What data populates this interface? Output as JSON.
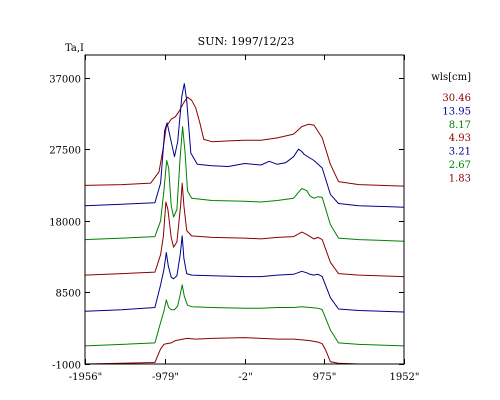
{
  "chart_data": {
    "type": "line",
    "title": "SUN: 1997/12/23",
    "ylabel": "Ta,I",
    "xlabel": "",
    "x_ticks": [
      {
        "value": -1956,
        "label": "-1956\""
      },
      {
        "value": -979,
        "label": "-979\""
      },
      {
        "value": -2,
        "label": "-2\""
      },
      {
        "value": 975,
        "label": "975\""
      },
      {
        "value": 1952,
        "label": "1952\""
      }
    ],
    "y_ticks": [
      37000,
      27500,
      18000,
      8500,
      -1000
    ],
    "xlim": [
      -1956,
      1952
    ],
    "ylim": [
      -1000,
      40000
    ],
    "grid": false,
    "legend_title": "wls[cm]",
    "legend_position": "right",
    "series": [
      {
        "name": "30.46",
        "color": "#8b0000",
        "points": [
          [
            -1956,
            22700
          ],
          [
            -1500,
            22800
          ],
          [
            -1150,
            23000
          ],
          [
            -1050,
            24500
          ],
          [
            -1000,
            27500
          ],
          [
            -960,
            30500
          ],
          [
            -900,
            31500
          ],
          [
            -850,
            31800
          ],
          [
            -800,
            32600
          ],
          [
            -750,
            33600
          ],
          [
            -700,
            34400
          ],
          [
            -650,
            34000
          ],
          [
            -600,
            33000
          ],
          [
            -550,
            31000
          ],
          [
            -500,
            28800
          ],
          [
            -400,
            28500
          ],
          [
            -200,
            28600
          ],
          [
            0,
            28700
          ],
          [
            200,
            28700
          ],
          [
            400,
            29000
          ],
          [
            600,
            29500
          ],
          [
            700,
            30500
          ],
          [
            780,
            30800
          ],
          [
            850,
            30700
          ],
          [
            950,
            29000
          ],
          [
            1050,
            25500
          ],
          [
            1150,
            23200
          ],
          [
            1400,
            22800
          ],
          [
            1952,
            22600
          ]
        ]
      },
      {
        "name": "13.95",
        "color": "#00008b",
        "points": [
          [
            -1956,
            20000
          ],
          [
            -1500,
            20200
          ],
          [
            -1100,
            20400
          ],
          [
            -1030,
            23000
          ],
          [
            -980,
            30000
          ],
          [
            -950,
            31000
          ],
          [
            -900,
            28500
          ],
          [
            -860,
            26500
          ],
          [
            -820,
            28500
          ],
          [
            -770,
            34500
          ],
          [
            -740,
            36200
          ],
          [
            -710,
            34000
          ],
          [
            -660,
            27000
          ],
          [
            -580,
            25500
          ],
          [
            -400,
            25300
          ],
          [
            -200,
            25200
          ],
          [
            0,
            25600
          ],
          [
            100,
            25500
          ],
          [
            200,
            25400
          ],
          [
            300,
            25900
          ],
          [
            400,
            25500
          ],
          [
            500,
            25700
          ],
          [
            600,
            26500
          ],
          [
            660,
            27500
          ],
          [
            700,
            27200
          ],
          [
            730,
            26800
          ],
          [
            790,
            26400
          ],
          [
            850,
            26000
          ],
          [
            950,
            25000
          ],
          [
            1050,
            21500
          ],
          [
            1150,
            20300
          ],
          [
            1400,
            20000
          ],
          [
            1952,
            19800
          ]
        ]
      },
      {
        "name": "8.17",
        "color": "#008000",
        "points": [
          [
            -1956,
            15500
          ],
          [
            -1500,
            15700
          ],
          [
            -1100,
            15900
          ],
          [
            -1030,
            18000
          ],
          [
            -990,
            22000
          ],
          [
            -955,
            26000
          ],
          [
            -930,
            25000
          ],
          [
            -900,
            20000
          ],
          [
            -870,
            18500
          ],
          [
            -830,
            19500
          ],
          [
            -790,
            26500
          ],
          [
            -760,
            30500
          ],
          [
            -730,
            27000
          ],
          [
            -700,
            22000
          ],
          [
            -650,
            21000
          ],
          [
            -400,
            20700
          ],
          [
            0,
            20600
          ],
          [
            200,
            20500
          ],
          [
            400,
            20700
          ],
          [
            600,
            21000
          ],
          [
            700,
            22300
          ],
          [
            760,
            22000
          ],
          [
            800,
            21300
          ],
          [
            850,
            21000
          ],
          [
            900,
            21200
          ],
          [
            950,
            21100
          ],
          [
            1050,
            17500
          ],
          [
            1150,
            15700
          ],
          [
            1400,
            15500
          ],
          [
            1952,
            15300
          ]
        ]
      },
      {
        "name": "4.93",
        "color": "#8b0000",
        "points": [
          [
            -1956,
            10800
          ],
          [
            -1500,
            11000
          ],
          [
            -1100,
            11200
          ],
          [
            -1030,
            13500
          ],
          [
            -995,
            16000
          ],
          [
            -965,
            20500
          ],
          [
            -940,
            19500
          ],
          [
            -900,
            15800
          ],
          [
            -870,
            14500
          ],
          [
            -830,
            15200
          ],
          [
            -785,
            20000
          ],
          [
            -765,
            23000
          ],
          [
            -745,
            20000
          ],
          [
            -710,
            16700
          ],
          [
            -650,
            16000
          ],
          [
            -400,
            15800
          ],
          [
            0,
            15700
          ],
          [
            200,
            15600
          ],
          [
            400,
            15800
          ],
          [
            600,
            15900
          ],
          [
            700,
            16500
          ],
          [
            760,
            16200
          ],
          [
            800,
            15900
          ],
          [
            850,
            15600
          ],
          [
            900,
            15800
          ],
          [
            950,
            15500
          ],
          [
            1050,
            12500
          ],
          [
            1150,
            11000
          ],
          [
            1400,
            10800
          ],
          [
            1952,
            10600
          ]
        ]
      },
      {
        "name": "3.21",
        "color": "#00008b",
        "points": [
          [
            -1956,
            6000
          ],
          [
            -1500,
            6200
          ],
          [
            -1100,
            6500
          ],
          [
            -1030,
            9500
          ],
          [
            -990,
            11500
          ],
          [
            -960,
            13800
          ],
          [
            -935,
            12000
          ],
          [
            -900,
            10500
          ],
          [
            -870,
            10300
          ],
          [
            -830,
            10700
          ],
          [
            -790,
            13500
          ],
          [
            -765,
            16000
          ],
          [
            -745,
            13000
          ],
          [
            -710,
            11000
          ],
          [
            -650,
            10800
          ],
          [
            -400,
            10700
          ],
          [
            0,
            10600
          ],
          [
            200,
            10600
          ],
          [
            400,
            10800
          ],
          [
            600,
            10900
          ],
          [
            700,
            11300
          ],
          [
            760,
            11100
          ],
          [
            800,
            10900
          ],
          [
            850,
            10800
          ],
          [
            900,
            10900
          ],
          [
            950,
            10600
          ],
          [
            1050,
            7800
          ],
          [
            1150,
            6300
          ],
          [
            1400,
            6100
          ],
          [
            1952,
            5900
          ]
        ]
      },
      {
        "name": "2.67",
        "color": "#008000",
        "points": [
          [
            -1956,
            1400
          ],
          [
            -1500,
            1600
          ],
          [
            -1100,
            1800
          ],
          [
            -1030,
            4500
          ],
          [
            -990,
            6000
          ],
          [
            -960,
            7500
          ],
          [
            -930,
            6500
          ],
          [
            -900,
            6200
          ],
          [
            -860,
            6200
          ],
          [
            -820,
            6700
          ],
          [
            -790,
            8200
          ],
          [
            -765,
            9500
          ],
          [
            -740,
            8000
          ],
          [
            -700,
            6800
          ],
          [
            -650,
            6600
          ],
          [
            -400,
            6500
          ],
          [
            0,
            6400
          ],
          [
            200,
            6400
          ],
          [
            400,
            6500
          ],
          [
            600,
            6500
          ],
          [
            700,
            6600
          ],
          [
            800,
            6500
          ],
          [
            900,
            6400
          ],
          [
            950,
            6200
          ],
          [
            1050,
            3500
          ],
          [
            1150,
            1800
          ],
          [
            1400,
            1600
          ],
          [
            1952,
            1400
          ]
        ]
      },
      {
        "name": "1.83",
        "color": "#8b0000",
        "points": [
          [
            -1956,
            -1000
          ],
          [
            -1500,
            -900
          ],
          [
            -1100,
            -800
          ],
          [
            -1030,
            1000
          ],
          [
            -990,
            1600
          ],
          [
            -960,
            1700
          ],
          [
            -900,
            1800
          ],
          [
            -850,
            2100
          ],
          [
            -800,
            2200
          ],
          [
            -760,
            2300
          ],
          [
            -700,
            2400
          ],
          [
            -600,
            2300
          ],
          [
            -400,
            2400
          ],
          [
            0,
            2500
          ],
          [
            200,
            2400
          ],
          [
            400,
            2300
          ],
          [
            600,
            2300
          ],
          [
            700,
            2200
          ],
          [
            800,
            2100
          ],
          [
            900,
            1900
          ],
          [
            950,
            1700
          ],
          [
            990,
            900
          ],
          [
            1050,
            -700
          ],
          [
            1150,
            -900
          ],
          [
            1400,
            -1000
          ],
          [
            1952,
            -1000
          ]
        ]
      }
    ]
  }
}
